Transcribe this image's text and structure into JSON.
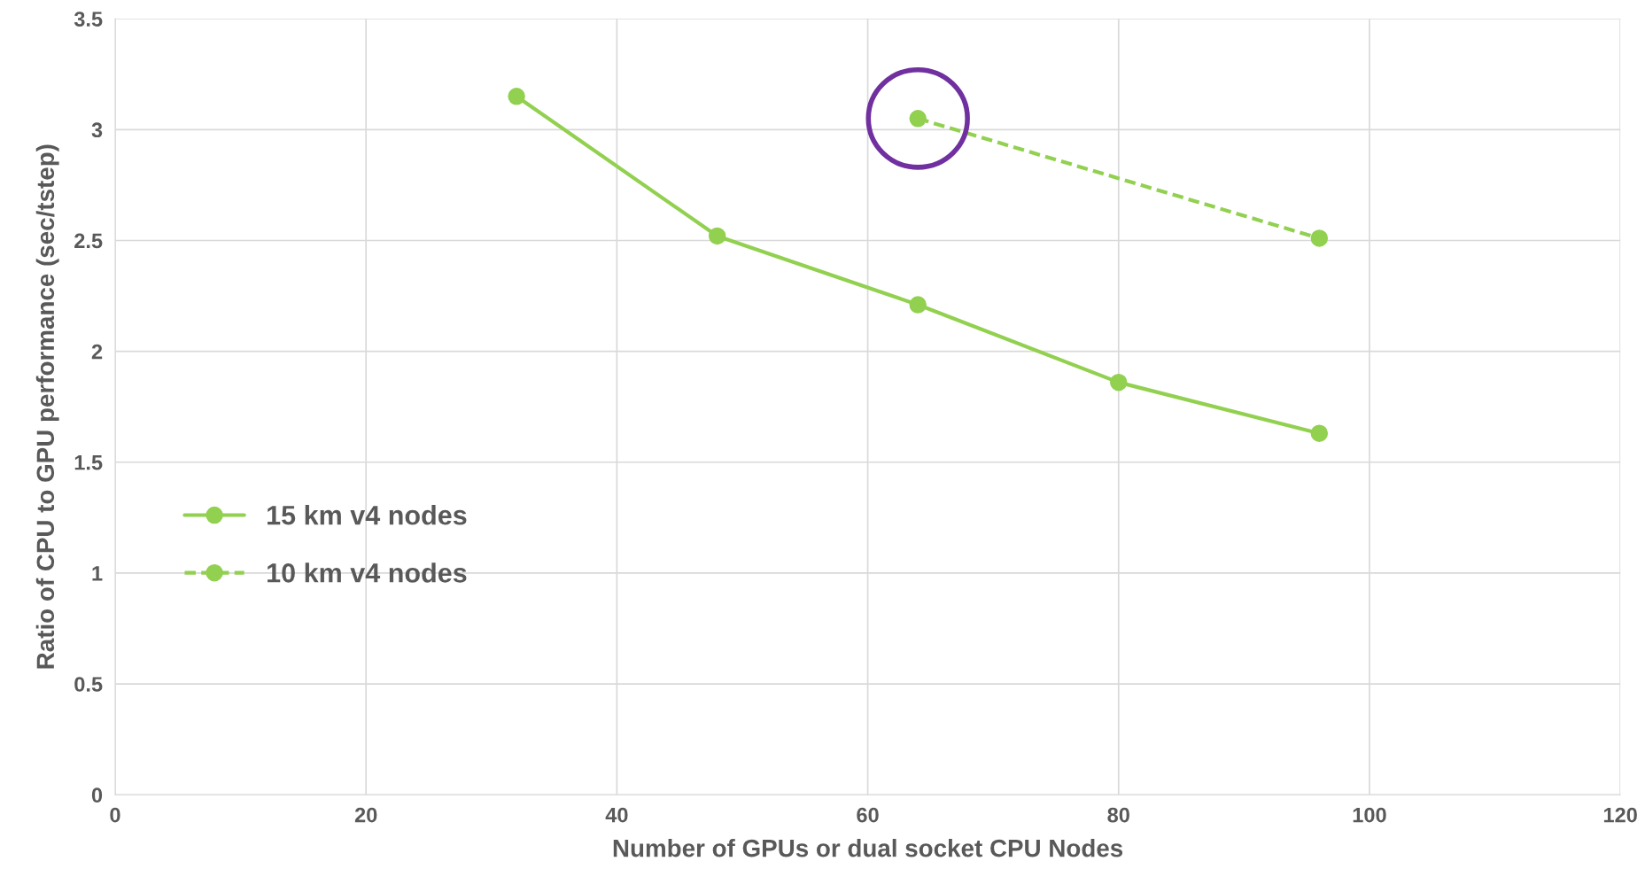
{
  "chart_data": {
    "type": "line",
    "xlabel": "Number of GPUs or dual socket CPU Nodes",
    "ylabel": "Ratio of CPU to GPU performance (sec/tstep)",
    "series": [
      {
        "name": "15 km v4 nodes",
        "color": "#92d050",
        "x": [
          32,
          48,
          64,
          80,
          96
        ],
        "values": [
          3.15,
          2.52,
          2.21,
          1.86,
          1.63
        ],
        "line_style": "solid"
      },
      {
        "name": "10 km v4 nodes",
        "color": "#92d050",
        "x": [
          64,
          96
        ],
        "values": [
          3.05,
          2.51
        ],
        "line_style": "dashed"
      }
    ],
    "xlim": [
      0,
      120
    ],
    "xticks": [
      0,
      20,
      40,
      60,
      80,
      100,
      120
    ],
    "ylim": [
      0,
      3.5
    ],
    "yticks": [
      0,
      0.5,
      1,
      1.5,
      2,
      2.5,
      3,
      3.5
    ],
    "grid": true,
    "legend": "center left",
    "marker": "circle"
  }
}
